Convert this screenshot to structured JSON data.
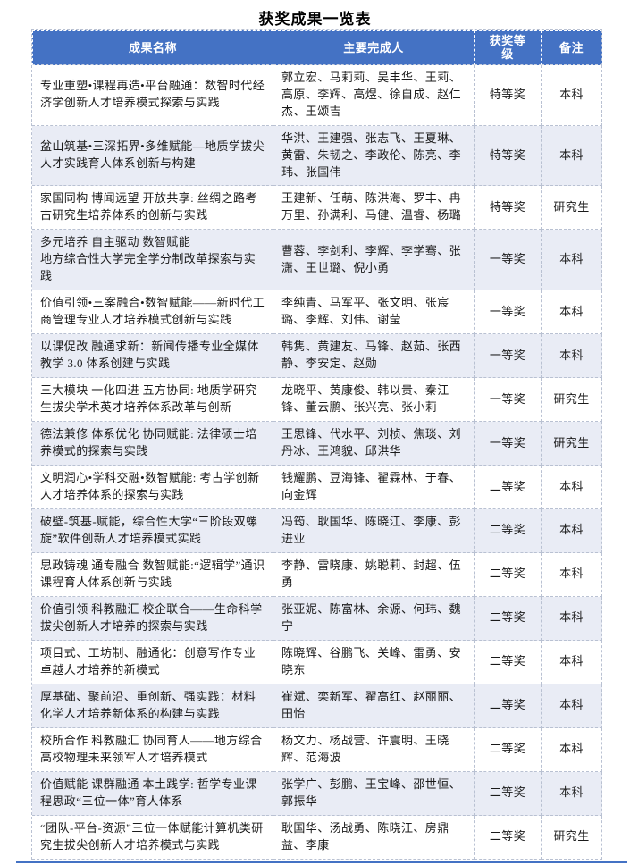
{
  "title": "获奖成果一览表",
  "colors": {
    "header_bg": "#4472C4",
    "header_fg": "#FFFFFF",
    "band_bg": "#E9ECF5",
    "border_dashed": "#B9C1D2",
    "bottom_rule": "#4472C4",
    "body_text": "#1A1A1A"
  },
  "table": {
    "headers": [
      "成果名称",
      "主要完成人",
      "获奖等级",
      "备注"
    ],
    "rows": [
      {
        "name": "专业重塑•课程再造•平台融通：数智时代经济学创新人才培养模式探索与实践",
        "contributors": "郭立宏、马莉莉、吴丰华、王莉、高原、李辉、高煜、徐自成、赵仁杰、王颂吉",
        "award": "特等奖",
        "note": "本科"
      },
      {
        "name": "盆山筑基•三深拓界•多维赋能—地质学拔尖人才实践育人体系创新与构建",
        "contributors": "华洪、王建强、张志飞、王夏琳、黄雷、朱韧之、李政伦、陈亮、李玮、张国伟",
        "award": "特等奖",
        "note": "本科"
      },
      {
        "name": "家国同构 博闻远望 开放共享: 丝绸之路考古研究生培养体系的创新与实践",
        "contributors": "王建新、任萌、陈洪海、罗丰、冉万里、孙满利、马健、温睿、杨璐",
        "award": "特等奖",
        "note": "研究生"
      },
      {
        "name": "多元培养 自主驱动 数智赋能\n地方综合性大学完全学分制改革探索与实践",
        "contributors": "曹蓉、李剑利、李辉、李学骞、张潇、王世璐、倪小勇",
        "award": "一等奖",
        "note": "本科"
      },
      {
        "name": "价值引领•三案融合•数智赋能——新时代工商管理专业人才培养模式创新与实践",
        "contributors": "李纯青、马军平、张文明、张宸璐、李辉、刘伟、谢莹",
        "award": "一等奖",
        "note": "本科"
      },
      {
        "name": "以课促改 融通求新：新闻传播专业全媒体教学 3.0 体系创建与实践",
        "contributors": "韩隽、黄建友、马锋、赵茹、张西静、李安定、赵勋",
        "award": "一等奖",
        "note": "本科"
      },
      {
        "name": "三大模块 一化四进 五方协同: 地质学研究生拔尖学术英才培养体系改革与创新",
        "contributors": "龙晓平、黄康俊、韩以贵、秦江锋、董云鹏、张兴亮、张小莉",
        "award": "一等奖",
        "note": "研究生"
      },
      {
        "name": "德法兼修 体系优化 协同赋能: 法律硕士培养模式的探索与实践",
        "contributors": "王思锋、代水平、刘桢、焦琰、刘丹冰、王鸿貌、邱洪华",
        "award": "一等奖",
        "note": "研究生"
      },
      {
        "name": "文明润心•学科交融•数智赋能: 考古学创新人才培养体系的探索与实践",
        "contributors": "钱耀鹏、豆海锋、翟霖林、于春、向金辉",
        "award": "二等奖",
        "note": "本科"
      },
      {
        "name": "破壁-筑基-赋能，综合性大学“三阶段双螺旋”软件创新人才培养模式实践",
        "contributors": "冯筠、耿国华、陈晓江、李康、彭进业",
        "award": "二等奖",
        "note": "本科"
      },
      {
        "name": "思政铸魂 通专融合 数智赋能:“逻辑学”通识课程育人体系创新与实践",
        "contributors": "李静、雷晓康、姚聪莉、封超、伍勇",
        "award": "二等奖",
        "note": "本科"
      },
      {
        "name": "价值引领 科教融汇 校企联合——生命科学拔尖创新人才培养的探索与实践",
        "contributors": "张亚妮、陈富林、余源、何玮、魏宁",
        "award": "二等奖",
        "note": "本科"
      },
      {
        "name": "项目式、工坊制、融通化：创意写作专业卓越人才培养的新模式",
        "contributors": "陈晓辉、谷鹏飞、关峰、雷勇、安晓东",
        "award": "二等奖",
        "note": "本科"
      },
      {
        "name": "厚基础、聚前沿、重创新、强实践：材料化学人才培养新体系的构建与实践",
        "contributors": "崔斌、栾新军、翟高红、赵丽丽、田怡",
        "award": "二等奖",
        "note": "本科"
      },
      {
        "name": "校所合作 科教融汇 协同育人——地方综合高校物理未来领军人才培养模式",
        "contributors": "杨文力、杨战营、许震明、王晓辉、范海波",
        "award": "二等奖",
        "note": "本科"
      },
      {
        "name": "价值赋能 课群融通 本土践学: 哲学专业课程思政“三位一体”育人体系",
        "contributors": "张学广、彭鹏、王宝峰、邵世恒、郭振华",
        "award": "二等奖",
        "note": "本科"
      },
      {
        "name": "“团队-平台-资源”三位一体赋能计算机类研究生拔尖创新人才培养模式与实践",
        "contributors": "耿国华、汤战勇、陈晓江、房鼎益、李康",
        "award": "二等奖",
        "note": "研究生"
      }
    ]
  }
}
